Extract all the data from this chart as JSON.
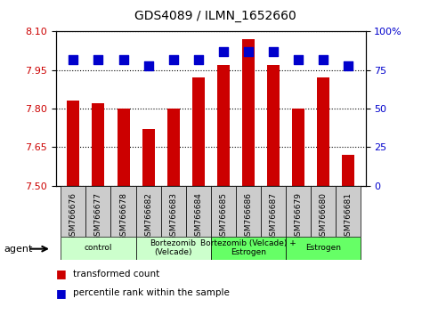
{
  "title": "GDS4089 / ILMN_1652660",
  "samples": [
    "GSM766676",
    "GSM766677",
    "GSM766678",
    "GSM766682",
    "GSM766683",
    "GSM766684",
    "GSM766685",
    "GSM766686",
    "GSM766687",
    "GSM766679",
    "GSM766680",
    "GSM766681"
  ],
  "bar_values": [
    7.83,
    7.82,
    7.8,
    7.72,
    7.8,
    7.92,
    7.97,
    8.07,
    7.97,
    7.8,
    7.92,
    7.62
  ],
  "dot_values": [
    82,
    82,
    82,
    78,
    82,
    82,
    87,
    87,
    87,
    82,
    82,
    78
  ],
  "ymin": 7.5,
  "ymax": 8.1,
  "yticks": [
    7.5,
    7.65,
    7.8,
    7.95,
    8.1
  ],
  "y2ticks": [
    0,
    25,
    50,
    75,
    100
  ],
  "y2labels": [
    "0",
    "25",
    "50",
    "75",
    "100%"
  ],
  "bar_color": "#cc0000",
  "dot_color": "#0000cc",
  "dot_size": 50,
  "groups": [
    {
      "label": "control",
      "start": 0,
      "end": 3,
      "color": "#ccffcc"
    },
    {
      "label": "Bortezomib\n(Velcade)",
      "start": 3,
      "end": 6,
      "color": "#ccffcc"
    },
    {
      "label": "Bortezomib (Velcade) +\nEstrogen",
      "start": 6,
      "end": 9,
      "color": "#66ff66"
    },
    {
      "label": "Estrogen",
      "start": 9,
      "end": 12,
      "color": "#66ff66"
    }
  ],
  "agent_label": "agent",
  "legend_bar_label": "transformed count",
  "legend_dot_label": "percentile rank within the sample",
  "bar_color_legend": "#cc0000",
  "dot_color_legend": "#0000cc",
  "grid_color": "#000000",
  "tick_label_bg": "#cccccc",
  "bar_width": 0.5
}
